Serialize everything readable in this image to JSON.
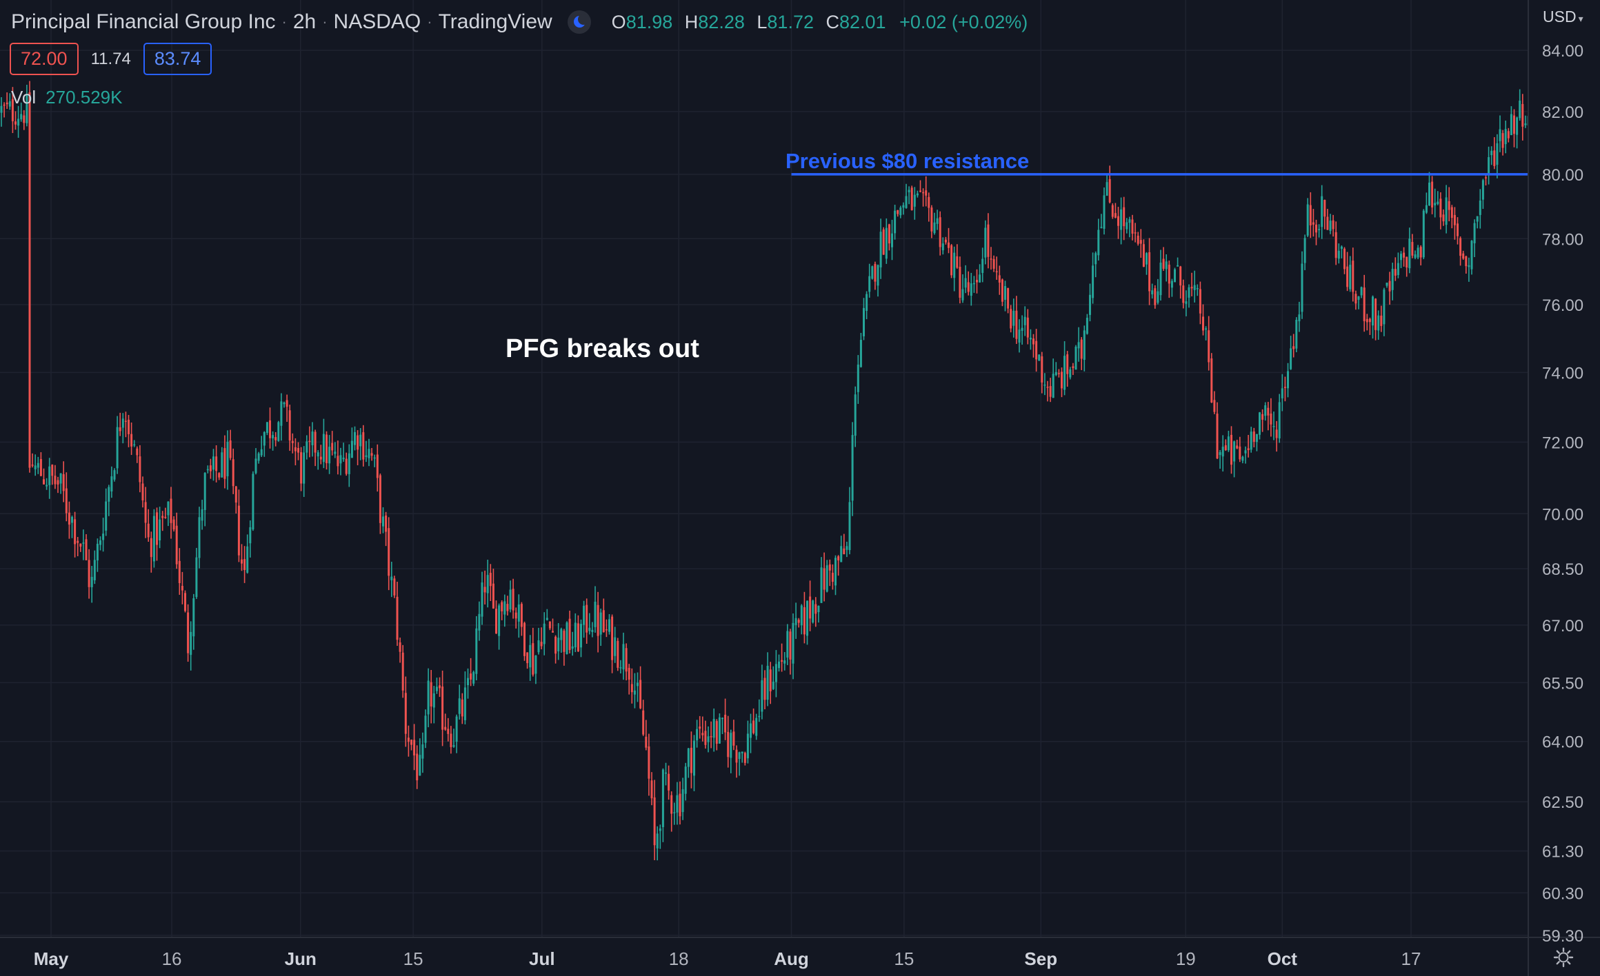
{
  "header": {
    "symbol_name": "Principal Financial Group Inc",
    "interval": "2h",
    "exchange": "NASDAQ",
    "source": "TradingView",
    "ohlc": {
      "o_label": "O",
      "o": "81.98",
      "h_label": "H",
      "h": "82.28",
      "l_label": "L",
      "l": "81.72",
      "c_label": "C",
      "c": "82.01",
      "change": "+0.02 (+0.02%)"
    },
    "range_low": "72.00",
    "range_diff": "11.74",
    "range_high": "83.74",
    "volume_label": "Vol",
    "volume_value": "270.529K",
    "currency": "USD"
  },
  "icons": {
    "session": "moon-icon",
    "currency_menu": "chevron-down-icon",
    "settings": "gear-icon"
  },
  "colors": {
    "background": "#131722",
    "grid": "#1f2330",
    "up": "#26a69a",
    "down": "#ef5350",
    "resistance": "#2962ff",
    "annotation_text": "#ffffff",
    "axis_text": "#b2b5be"
  },
  "chart_data": {
    "type": "candlestick",
    "symbol": "PFG",
    "interval": "2h",
    "y_scale": "log",
    "y_range": [
      59.3,
      85.0
    ],
    "y_ticks": [
      "84.00",
      "82.00",
      "80.00",
      "78.00",
      "76.00",
      "74.00",
      "72.00",
      "70.00",
      "68.50",
      "67.00",
      "65.50",
      "64.00",
      "62.50",
      "61.30",
      "60.30",
      "59.30"
    ],
    "x_ticks": [
      "May",
      "16",
      "Jun",
      "15",
      "Jul",
      "18",
      "Aug",
      "15",
      "Sep",
      "19",
      "Oct",
      "17"
    ],
    "x_ticks_bold": [
      "May",
      "Jun",
      "Jul",
      "Aug",
      "Sep",
      "Oct"
    ],
    "grid": true,
    "annotations": [
      {
        "text": "Previous $80 resistance",
        "type": "horizontal_line",
        "price": 80.0,
        "from_date": "Aug 1"
      },
      {
        "text": "PFG breaks out",
        "type": "text_label"
      }
    ],
    "price_path": [
      [
        "Apr 28",
        71.4
      ],
      [
        "May 2",
        70.8
      ],
      [
        "May 5",
        69.0
      ],
      [
        "May 6",
        68.0
      ],
      [
        "May 9",
        71.8
      ],
      [
        "May 10",
        73.2
      ],
      [
        "May 12",
        71.0
      ],
      [
        "May 13",
        69.2
      ],
      [
        "May 16",
        70.0
      ],
      [
        "May 18",
        66.5
      ],
      [
        "May 20",
        70.8
      ],
      [
        "May 23",
        71.5
      ],
      [
        "May 25",
        68.2
      ],
      [
        "May 26",
        70.8
      ],
      [
        "May 27",
        72.2
      ],
      [
        "May 30",
        72.8
      ],
      [
        "Jun 1",
        71.2
      ],
      [
        "Jun 3",
        72.0
      ],
      [
        "Jun 6",
        71.3
      ],
      [
        "Jun 8",
        72.3
      ],
      [
        "Jun 10",
        71.5
      ],
      [
        "Jun 13",
        67.0
      ],
      [
        "Jun 14",
        64.5
      ],
      [
        "Jun 16",
        63.0
      ],
      [
        "Jun 17",
        65.3
      ],
      [
        "Jun 20",
        64.2
      ],
      [
        "Jun 22",
        65.3
      ],
      [
        "Jun 24",
        68.3
      ],
      [
        "Jun 25",
        67.2
      ],
      [
        "Jun 27",
        68.0
      ],
      [
        "Jun 28",
        67.2
      ],
      [
        "Jun 30",
        66.0
      ],
      [
        "Jul 1",
        67.0
      ],
      [
        "Jul 5",
        66.5
      ],
      [
        "Jul 7",
        67.3
      ],
      [
        "Jul 12",
        66.0
      ],
      [
        "Jul 14",
        63.7
      ],
      [
        "Jul 15",
        61.3
      ],
      [
        "Jul 16",
        62.8
      ],
      [
        "Jul 18",
        62.5
      ],
      [
        "Jul 20",
        64.1
      ],
      [
        "Jul 22",
        64.3
      ],
      [
        "Jul 26",
        63.8
      ],
      [
        "Jul 28",
        64.8
      ],
      [
        "Jul 29",
        65.5
      ],
      [
        "Aug 1",
        66.5
      ],
      [
        "Aug 3",
        67.3
      ],
      [
        "Aug 5",
        68.2
      ],
      [
        "Aug 8",
        69.0
      ],
      [
        "Aug 9",
        74.0
      ],
      [
        "Aug 10",
        75.5
      ],
      [
        "Aug 11",
        76.8
      ],
      [
        "Aug 12",
        77.8
      ],
      [
        "Aug 15",
        79.2
      ],
      [
        "Aug 17",
        79.0
      ],
      [
        "Aug 19",
        78.5
      ],
      [
        "Aug 22",
        76.6
      ],
      [
        "Aug 24",
        76.2
      ],
      [
        "Aug 25",
        78.3
      ],
      [
        "Aug 26",
        76.8
      ],
      [
        "Aug 29",
        75.4
      ],
      [
        "Aug 31",
        74.8
      ],
      [
        "Sep 2",
        73.5
      ],
      [
        "Sep 6",
        74.5
      ],
      [
        "Sep 7",
        76.5
      ],
      [
        "Sep 8",
        78.3
      ],
      [
        "Sep 9",
        79.4
      ],
      [
        "Sep 12",
        78.2
      ],
      [
        "Sep 14",
        77.2
      ],
      [
        "Sep 15",
        76.3
      ],
      [
        "Sep 16",
        77.2
      ],
      [
        "Sep 19",
        76.5
      ],
      [
        "Sep 21",
        75.8
      ],
      [
        "Sep 23",
        71.8
      ],
      [
        "Sep 26",
        71.5
      ],
      [
        "Sep 28",
        72.8
      ],
      [
        "Sep 30",
        72.3
      ],
      [
        "Oct 3",
        75.8
      ],
      [
        "Oct 4",
        78.6
      ],
      [
        "Oct 6",
        78.8
      ],
      [
        "Oct 7",
        78.3
      ],
      [
        "Oct 10",
        76.3
      ],
      [
        "Oct 13",
        75.5
      ],
      [
        "Oct 14",
        76.3
      ],
      [
        "Oct 17",
        77.8
      ],
      [
        "Oct 18",
        77.2
      ],
      [
        "Oct 19",
        79.5
      ],
      [
        "Oct 21",
        79.0
      ],
      [
        "Oct 24",
        77.2
      ],
      [
        "Oct 26",
        79.8
      ],
      [
        "Oct 27",
        80.5
      ],
      [
        "Oct 28",
        81.2
      ],
      [
        "Oct 31",
        82.1
      ],
      [
        "Nov 1",
        82.01
      ]
    ]
  }
}
